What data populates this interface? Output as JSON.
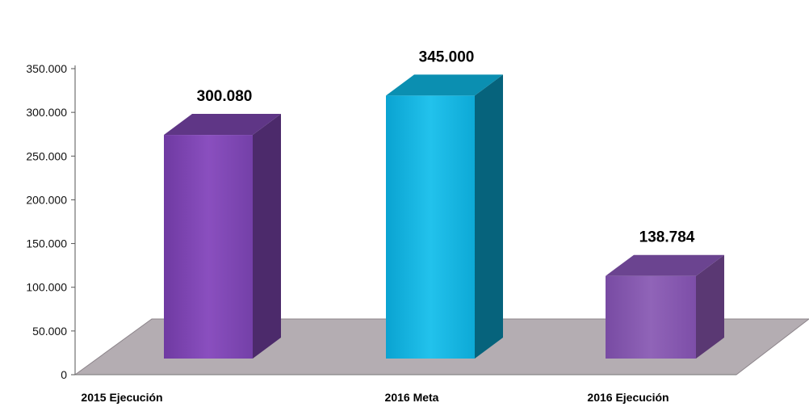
{
  "chart_data": {
    "type": "bar",
    "title": "",
    "xlabel": "",
    "ylabel": "",
    "categories": [
      "2015 Ejecución",
      "2016 Meta",
      "2016 Ejecución"
    ],
    "values": [
      300080,
      345000,
      138784
    ],
    "value_labels": [
      "300.080",
      "345.000",
      "138.784"
    ],
    "ylim": [
      0,
      350000
    ],
    "yticks": [
      0,
      50000,
      100000,
      150000,
      200000,
      250000,
      300000,
      350000
    ],
    "ytick_labels": [
      "0",
      "50.000",
      "100.000",
      "150.000",
      "200.000",
      "250.000",
      "300.000",
      "350.000"
    ],
    "grid": false,
    "legend": "none",
    "colors": {
      "bar_purple_front": "#7f45b0",
      "bar_purple_side": "#4c2a6b",
      "bar_purple_top": "#5f3686",
      "bar_cyan_front": "#17b4df",
      "bar_cyan_side": "#06637c",
      "bar_cyan_top": "#0b8fb1",
      "bar_lilac_front": "#8457ad",
      "bar_lilac_side": "#5a3873",
      "bar_lilac_top": "#6b4490",
      "floor": "#b4adb2",
      "floor_edge": "#8c848a"
    }
  }
}
